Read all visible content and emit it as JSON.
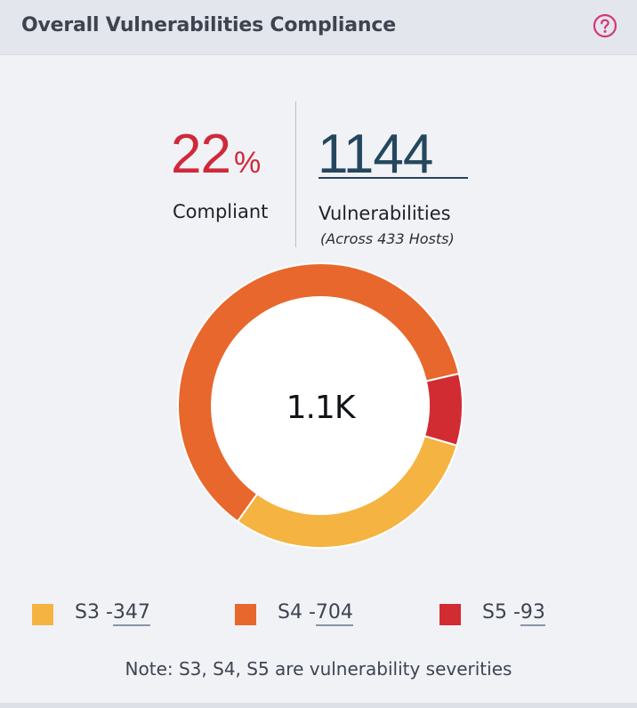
{
  "widget": {
    "title": "Overall Vulnerabilities Compliance",
    "help_icon": "question-circle-icon"
  },
  "compliance": {
    "percent": "22",
    "percent_sign": "%",
    "label": "Compliant"
  },
  "vulnerabilities": {
    "count": "1144",
    "label": "Vulnerabilities",
    "subtitle": "(Across 433 Hosts)"
  },
  "chart_data": {
    "type": "pie",
    "style": "donut",
    "center_label": "1.1K",
    "total": 1144,
    "series": [
      {
        "name": "S3",
        "value": 347,
        "color": "#f5b342"
      },
      {
        "name": "S4",
        "value": 704,
        "color": "#e8672c"
      },
      {
        "name": "S5",
        "value": 93,
        "color": "#d22c33"
      }
    ]
  },
  "legend": [
    {
      "name": "S3",
      "sep": " -",
      "value": "347",
      "color": "#f5b342"
    },
    {
      "name": "S4",
      "sep": " -",
      "value": "704",
      "color": "#e8672c"
    },
    {
      "name": "S5",
      "sep": " -",
      "value": "93",
      "color": "#d22c33"
    }
  ],
  "note": "Note: S3, S4, S5 are vulnerability severities",
  "colors": {
    "accent_pink": "#d6357a",
    "compliant_red": "#d0293a",
    "count_blue": "#24475e"
  }
}
